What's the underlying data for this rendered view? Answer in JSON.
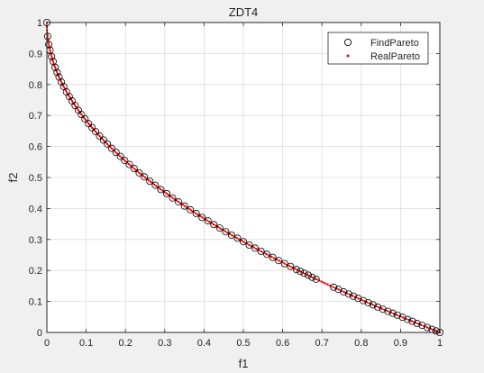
{
  "colors": {
    "figure_bg": "#f0f0f0",
    "axes_bg": "#ffffff",
    "grid": "#dcdcdc",
    "axis": "#262626",
    "find_marker": "#000000",
    "real_marker": "#ff0000",
    "real_line": "#d01010"
  },
  "chart_data": {
    "type": "scatter",
    "title": "ZDT4",
    "xlabel": "f1",
    "ylabel": "f2",
    "xlim": [
      0,
      1
    ],
    "ylim": [
      0,
      1
    ],
    "xticks": [
      "0",
      "0.1",
      "0.2",
      "0.3",
      "0.4",
      "0.5",
      "0.6",
      "0.7",
      "0.8",
      "0.9",
      "1"
    ],
    "yticks": [
      "0",
      "0.1",
      "0.2",
      "0.3",
      "0.4",
      "0.5",
      "0.6",
      "0.7",
      "0.8",
      "0.9",
      "1"
    ],
    "grid": true,
    "legend_position": "top-right",
    "legend": [
      {
        "label": "FindPareto",
        "marker": "circle"
      },
      {
        "label": "RealPareto",
        "marker": "dot"
      }
    ],
    "series": [
      {
        "name": "FindPareto",
        "marker": "open-circle",
        "x": [
          0,
          0.002,
          0.005,
          0.008,
          0.012,
          0.016,
          0.021,
          0.026,
          0.031,
          0.037,
          0.043,
          0.05,
          0.057,
          0.064,
          0.072,
          0.08,
          0.088,
          0.097,
          0.106,
          0.115,
          0.124,
          0.134,
          0.144,
          0.154,
          0.165,
          0.176,
          0.187,
          0.198,
          0.21,
          0.222,
          0.235,
          0.248,
          0.262,
          0.276,
          0.29,
          0.305,
          0.32,
          0.335,
          0.35,
          0.365,
          0.38,
          0.395,
          0.41,
          0.425,
          0.44,
          0.455,
          0.47,
          0.485,
          0.5,
          0.515,
          0.53,
          0.545,
          0.56,
          0.575,
          0.59,
          0.605,
          0.62,
          0.635,
          0.645,
          0.655,
          0.665,
          0.675,
          0.685,
          0.73,
          0.742,
          0.755,
          0.768,
          0.78,
          0.792,
          0.805,
          0.818,
          0.83,
          0.842,
          0.855,
          0.868,
          0.88,
          0.892,
          0.905,
          0.918,
          0.93,
          0.942,
          0.955,
          0.968,
          0.98,
          0.99,
          1.0
        ],
        "y": [
          1.0,
          0.955,
          0.929,
          0.911,
          0.89,
          0.874,
          0.855,
          0.839,
          0.824,
          0.808,
          0.793,
          0.776,
          0.761,
          0.747,
          0.732,
          0.717,
          0.703,
          0.689,
          0.674,
          0.661,
          0.648,
          0.634,
          0.621,
          0.608,
          0.594,
          0.581,
          0.568,
          0.555,
          0.542,
          0.529,
          0.515,
          0.502,
          0.488,
          0.475,
          0.461,
          0.448,
          0.434,
          0.421,
          0.408,
          0.396,
          0.384,
          0.371,
          0.36,
          0.348,
          0.337,
          0.325,
          0.314,
          0.304,
          0.293,
          0.282,
          0.272,
          0.262,
          0.252,
          0.242,
          0.232,
          0.222,
          0.213,
          0.203,
          0.197,
          0.191,
          0.185,
          0.178,
          0.172,
          0.146,
          0.139,
          0.131,
          0.124,
          0.117,
          0.11,
          0.103,
          0.096,
          0.089,
          0.082,
          0.075,
          0.068,
          0.062,
          0.056,
          0.049,
          0.042,
          0.036,
          0.029,
          0.023,
          0.016,
          0.01,
          0.005,
          0.0
        ]
      },
      {
        "name": "RealPareto",
        "marker": "dot",
        "function": "f2 = 1 - sqrt(f1)",
        "x_range": [
          0,
          1
        ]
      }
    ]
  }
}
